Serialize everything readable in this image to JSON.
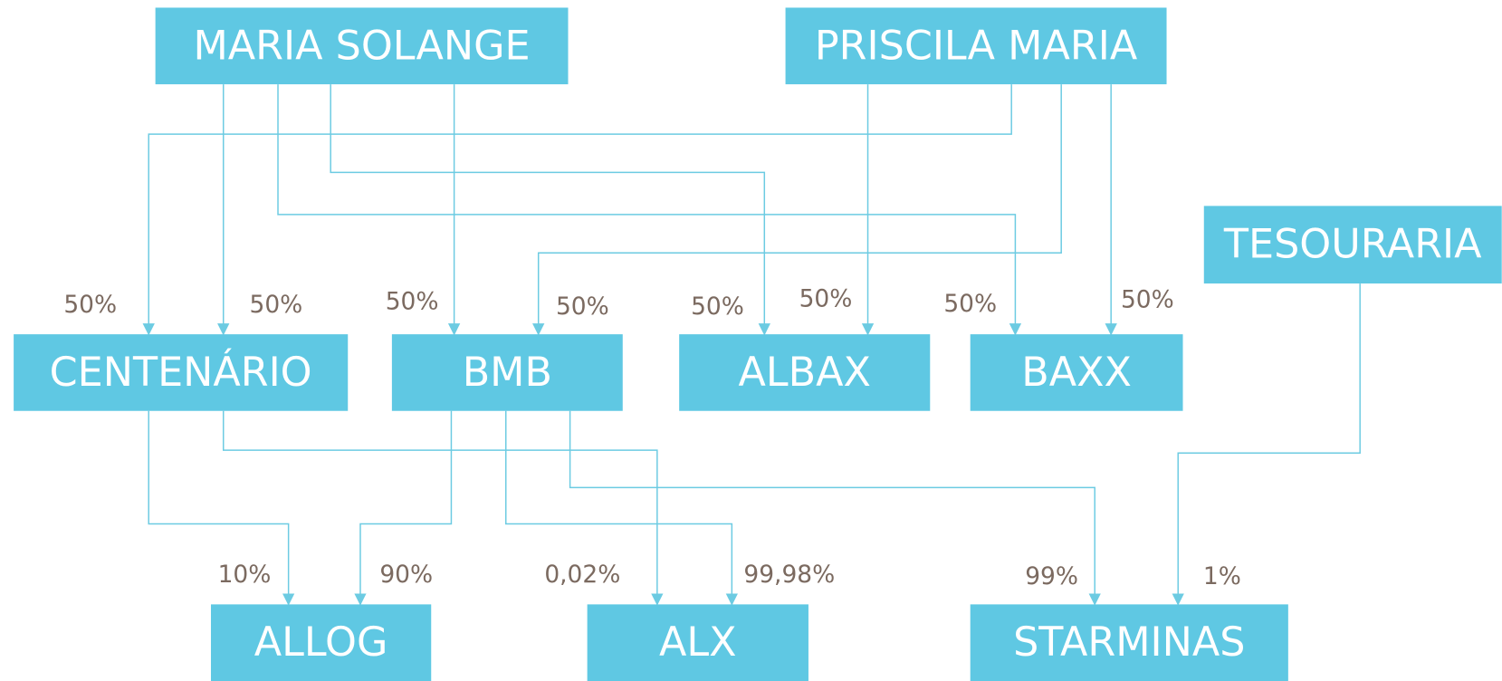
{
  "nodes": [
    {
      "label": "MARIA SOLANGE"
    },
    {
      "label": "PRISCILA MARIA"
    },
    {
      "label": "TESOURARIA"
    },
    {
      "label": "CENTENÁRIO"
    },
    {
      "label": "BMB"
    },
    {
      "label": "ALBAX"
    },
    {
      "label": "BAXX"
    },
    {
      "label": "ALLOG"
    },
    {
      "label": "ALX"
    },
    {
      "label": "STARMINAS"
    }
  ],
  "edges": [
    {
      "from": "PRISCILA MARIA",
      "to": "CENTENÁRIO",
      "label": "50%"
    },
    {
      "from": "MARIA SOLANGE",
      "to": "CENTENÁRIO",
      "label": "50%"
    },
    {
      "from": "MARIA SOLANGE",
      "to": "BMB",
      "label": "50%"
    },
    {
      "from": "PRISCILA MARIA",
      "to": "BMB",
      "label": "50%"
    },
    {
      "from": "MARIA SOLANGE",
      "to": "ALBAX",
      "label": "50%"
    },
    {
      "from": "PRISCILA MARIA",
      "to": "ALBAX",
      "label": "50%"
    },
    {
      "from": "MARIA SOLANGE",
      "to": "BAXX",
      "label": "50%"
    },
    {
      "from": "PRISCILA MARIA",
      "to": "BAXX",
      "label": "50%"
    },
    {
      "from": "CENTENÁRIO",
      "to": "ALLOG",
      "label": "10%"
    },
    {
      "from": "BMB",
      "to": "ALLOG",
      "label": "90%"
    },
    {
      "from": "CENTENÁRIO",
      "to": "ALX",
      "label": "0,02%"
    },
    {
      "from": "BMB",
      "to": "ALX",
      "label": "99,98%"
    },
    {
      "from": "BMB",
      "to": "STARMINAS",
      "label": "99%"
    },
    {
      "from": "TESOURARIA",
      "to": "STARMINAS",
      "label": "1%"
    }
  ]
}
